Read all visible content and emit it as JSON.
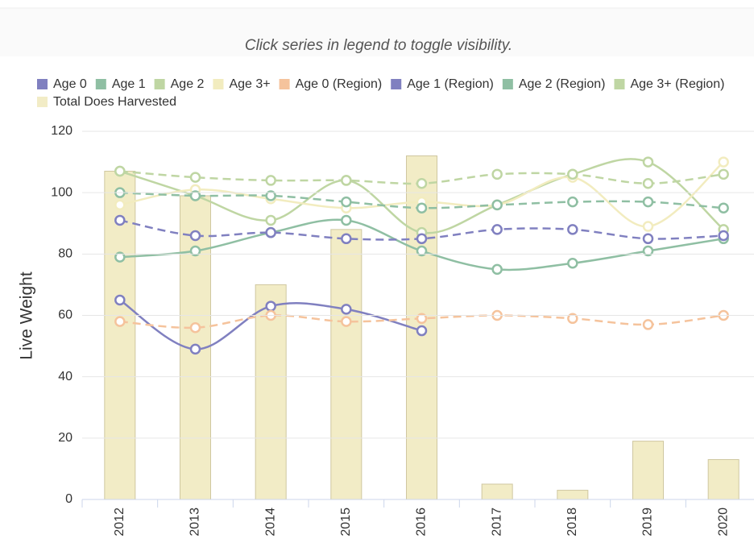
{
  "note": "Click series in legend to toggle visibility.",
  "chart_data": {
    "type": "combo",
    "y_label": "Live Weight",
    "categories": [
      "2012",
      "2013",
      "2014",
      "2015",
      "2016",
      "2017",
      "2018",
      "2019",
      "2020"
    ],
    "ylim": [
      0,
      120
    ],
    "yticks": [
      0,
      20,
      40,
      60,
      80,
      100,
      120
    ],
    "grid": true,
    "series": [
      {
        "name": "Age 0",
        "kind": "line",
        "dashed": false,
        "color": "#8080c0",
        "values": [
          65,
          49,
          63,
          62,
          55,
          null,
          null,
          null,
          null
        ]
      },
      {
        "name": "Age 1",
        "kind": "line",
        "dashed": false,
        "color": "#8fbfa3",
        "values": [
          79,
          81,
          87,
          91,
          81,
          75,
          77,
          81,
          85
        ]
      },
      {
        "name": "Age 2",
        "kind": "line",
        "dashed": false,
        "color": "#bfd6a3",
        "values": [
          107,
          99,
          91,
          104,
          87,
          96,
          106,
          110,
          88
        ]
      },
      {
        "name": "Age 3+",
        "kind": "line",
        "dashed": false,
        "color": "#f2ecbf",
        "values": [
          96,
          101,
          98,
          95,
          97,
          96,
          105,
          89,
          110
        ]
      },
      {
        "name": "Age 0 (Region)",
        "kind": "line",
        "dashed": true,
        "color": "#f5c39c",
        "values": [
          58,
          56,
          60,
          58,
          59,
          60,
          59,
          57,
          60
        ]
      },
      {
        "name": "Age 1 (Region)",
        "kind": "line",
        "dashed": true,
        "color": "#8080c0",
        "values": [
          91,
          86,
          87,
          85,
          85,
          88,
          88,
          85,
          86
        ]
      },
      {
        "name": "Age 2 (Region)",
        "kind": "line",
        "dashed": true,
        "color": "#8fbfa3",
        "values": [
          100,
          99,
          99,
          97,
          95,
          96,
          97,
          97,
          95
        ]
      },
      {
        "name": "Age 3+ (Region)",
        "kind": "line",
        "dashed": true,
        "color": "#bfd6a3",
        "values": [
          107,
          105,
          104,
          104,
          103,
          106,
          106,
          103,
          106
        ]
      },
      {
        "name": "Total Does Harvested",
        "kind": "bar",
        "dashed": false,
        "color": "#f2ecc6",
        "values": [
          107,
          99,
          70,
          88,
          112,
          5,
          3,
          19,
          13
        ]
      }
    ]
  }
}
